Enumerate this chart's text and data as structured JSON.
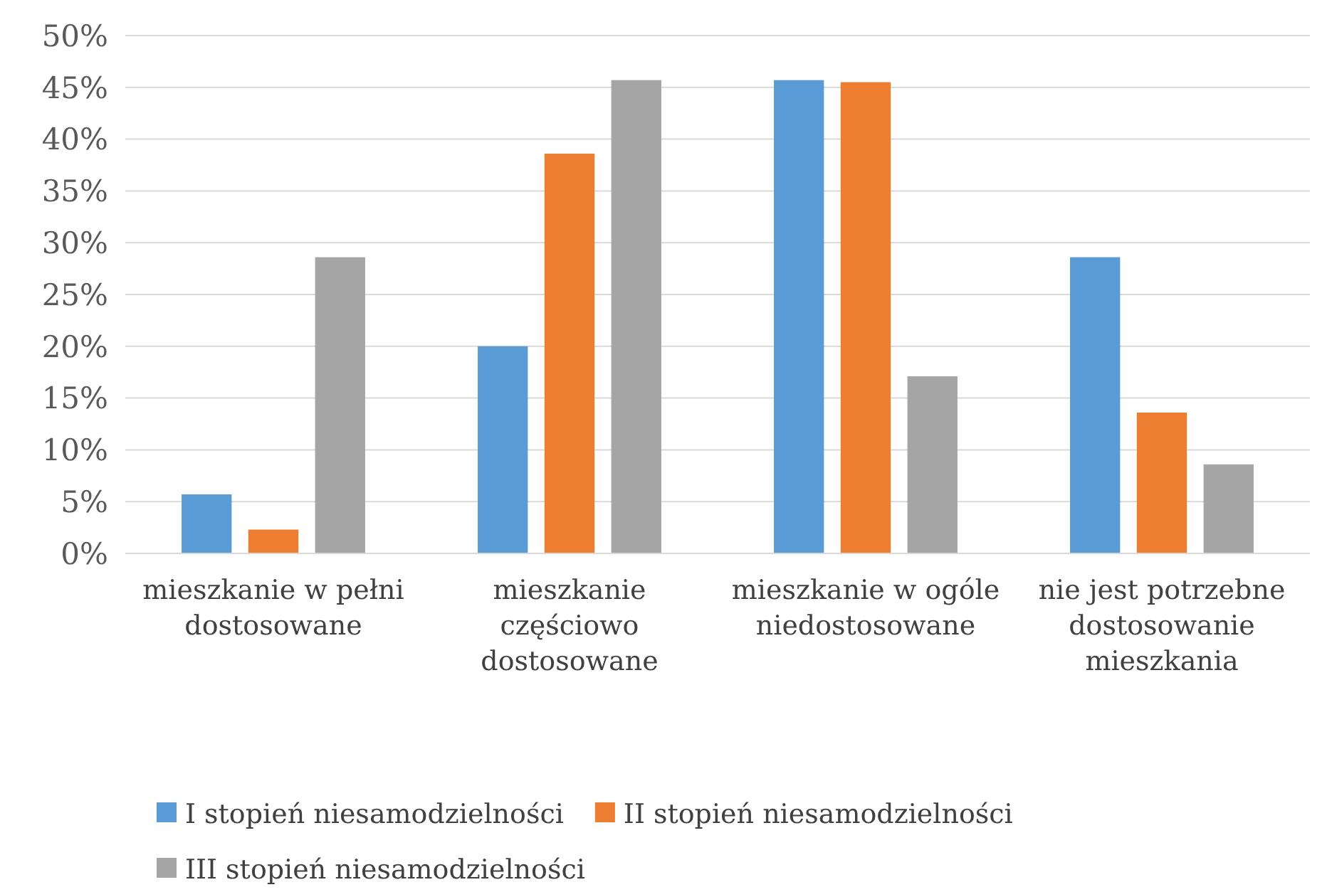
{
  "chart_data": {
    "type": "bar",
    "categories": [
      "mieszkanie w pełni dostosowane",
      "mieszkanie częściowo dostosowane",
      "mieszkanie w ogóle niedostosowane",
      "nie jest potrzebne dostosowanie mieszkania"
    ],
    "series": [
      {
        "name": "I stopień niesamodzielności",
        "color": "#5b9bd5",
        "values": [
          5.7,
          20.0,
          45.7,
          28.6
        ]
      },
      {
        "name": "II stopień niesamodzielności",
        "color": "#ed7d31",
        "values": [
          2.3,
          38.6,
          45.5,
          13.6
        ]
      },
      {
        "name": "III stopień niesamodzielności",
        "color": "#a5a5a5",
        "values": [
          28.6,
          45.7,
          17.1,
          8.6
        ]
      }
    ],
    "ylim": [
      0,
      50
    ],
    "yticks": [
      {
        "value": 0,
        "label": "0%"
      },
      {
        "value": 5,
        "label": "5%"
      },
      {
        "value": 10,
        "label": "10%"
      },
      {
        "value": 15,
        "label": "15%"
      },
      {
        "value": 20,
        "label": "20%"
      },
      {
        "value": 25,
        "label": "25%"
      },
      {
        "value": 30,
        "label": "30%"
      },
      {
        "value": 35,
        "label": "35%"
      },
      {
        "value": 40,
        "label": "40%"
      },
      {
        "value": 45,
        "label": "45%"
      },
      {
        "value": 50,
        "label": "50%"
      }
    ],
    "grid": "y",
    "legend": "bottom"
  }
}
